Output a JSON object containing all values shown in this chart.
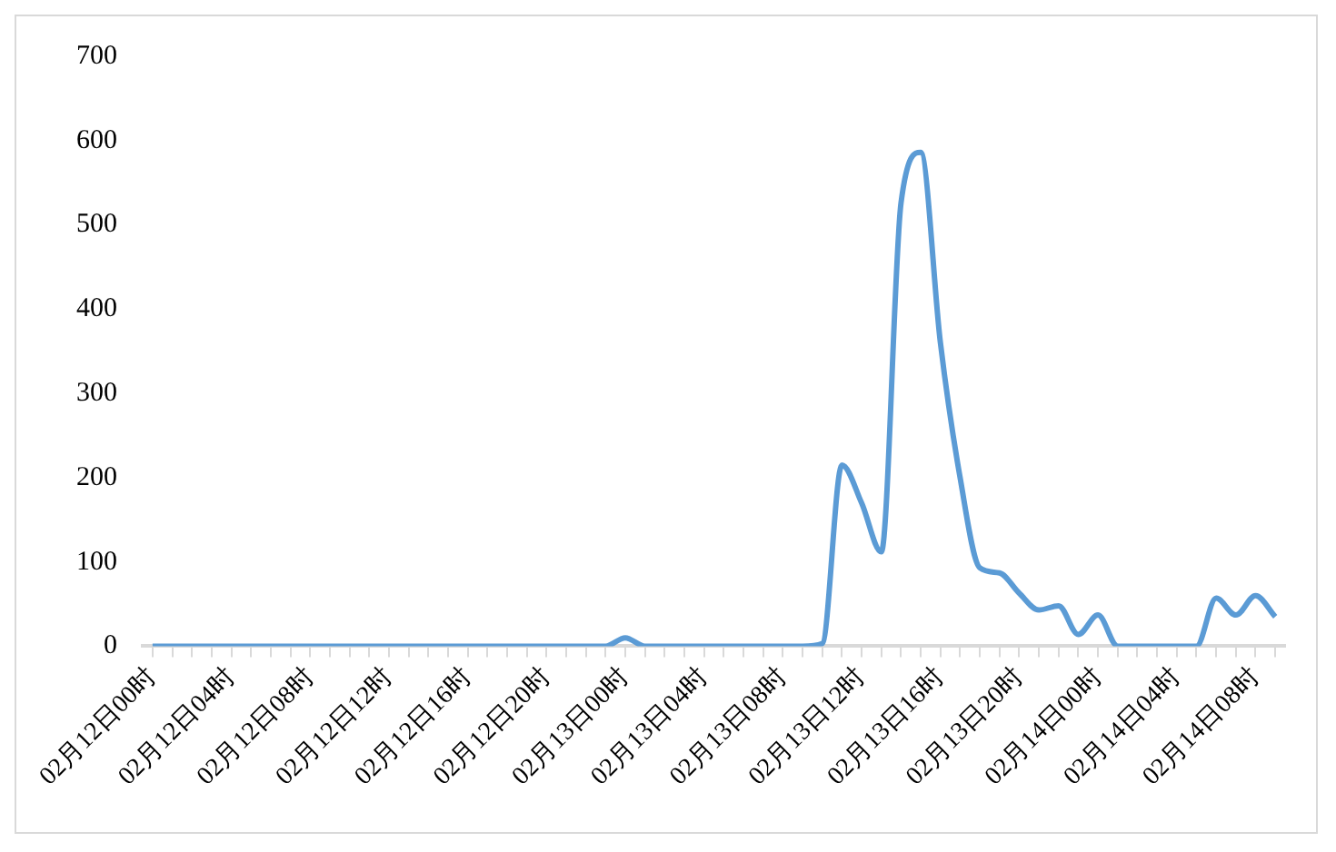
{
  "chart_data": {
    "type": "line",
    "categories": [
      "02月12日00时",
      null,
      null,
      null,
      "02月12日04时",
      null,
      null,
      null,
      "02月12日08时",
      null,
      null,
      null,
      "02月12日12时",
      null,
      null,
      null,
      "02月12日16时",
      null,
      null,
      null,
      "02月12日20时",
      null,
      null,
      null,
      "02月13日00时",
      null,
      null,
      null,
      "02月13日04时",
      null,
      null,
      null,
      "02月13日08时",
      null,
      null,
      null,
      "02月13日12时",
      null,
      null,
      null,
      "02月13日16时",
      null,
      null,
      null,
      "02月13日20时",
      null,
      null,
      null,
      "02月14日00时",
      null,
      null,
      null,
      "02月14日04时",
      null,
      null,
      null,
      "02月14日08时",
      null
    ],
    "series": [
      {
        "color": "#5b9bd5",
        "values": [
          0,
          0,
          0,
          0,
          0,
          0,
          0,
          0,
          0,
          0,
          0,
          0,
          0,
          0,
          0,
          0,
          0,
          0,
          0,
          0,
          0,
          0,
          0,
          0,
          10,
          0,
          0,
          0,
          0,
          0,
          0,
          0,
          0,
          0,
          3,
          215,
          170,
          112,
          526,
          586,
          360,
          200,
          93,
          87,
          63,
          43,
          48,
          14,
          37,
          0,
          0,
          0,
          0,
          0,
          57,
          37,
          60,
          35
        ]
      }
    ],
    "ylim": [
      0,
      700
    ],
    "yticks": [
      0,
      100,
      200,
      300,
      400,
      500,
      600,
      700
    ],
    "grid": false,
    "legend": false
  }
}
